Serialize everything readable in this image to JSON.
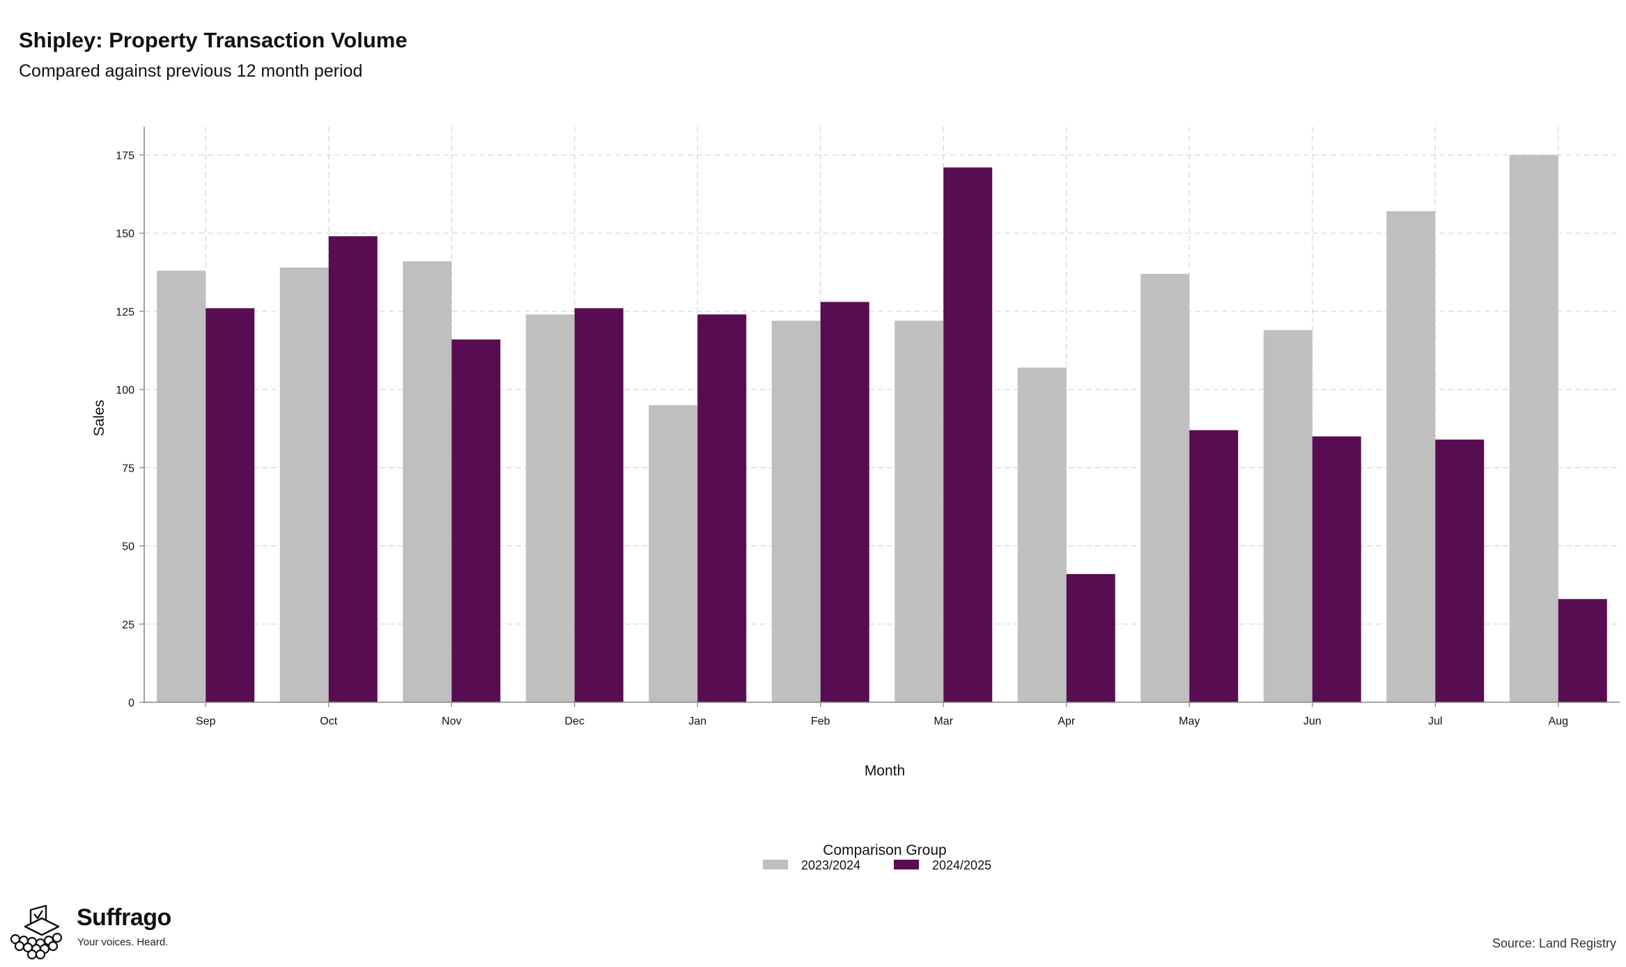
{
  "chart_data": {
    "type": "bar",
    "title": "Shipley: Property Transaction Volume",
    "subtitle": "Compared against previous 12 month period",
    "xlabel": "Month",
    "ylabel": "Sales",
    "ylim": [
      0,
      184
    ],
    "yticks": [
      0,
      25,
      50,
      75,
      100,
      125,
      150,
      175
    ],
    "grid": true,
    "legend_title": "Comparison Group",
    "legend_position": "bottom",
    "categories": [
      "Sep",
      "Oct",
      "Nov",
      "Dec",
      "Jan",
      "Feb",
      "Mar",
      "Apr",
      "May",
      "Jun",
      "Jul",
      "Aug"
    ],
    "series": [
      {
        "name": "2023/2024",
        "color": "#bfbfbf",
        "values": [
          138,
          139,
          141,
          124,
          95,
          122,
          122,
          107,
          137,
          119,
          157,
          175
        ]
      },
      {
        "name": "2024/2025",
        "color": "#580c52",
        "values": [
          126,
          149,
          116,
          126,
          124,
          128,
          171,
          41,
          87,
          85,
          84,
          33
        ]
      }
    ]
  },
  "branding": {
    "name": "Suffrago",
    "tagline": "Your voices. Heard.",
    "logo_icon": "ballot-box-icon"
  },
  "source": "Source: Land Registry"
}
